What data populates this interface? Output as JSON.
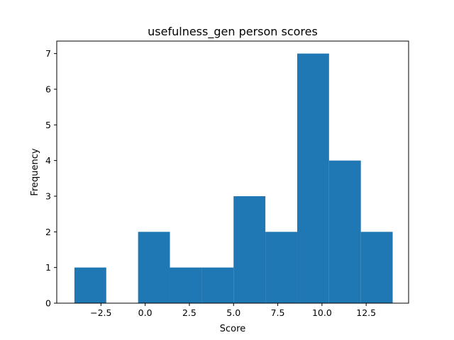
{
  "chart_data": {
    "type": "bar",
    "title": "usefulness_gen person scores",
    "xlabel": "Score",
    "ylabel": "Frequency",
    "bin_edges": [
      -4.0,
      -2.2,
      -0.4,
      1.4,
      3.2,
      5.0,
      6.8,
      8.6,
      10.4,
      12.2,
      14.0
    ],
    "values": [
      1,
      0,
      2,
      1,
      1,
      3,
      2,
      7,
      4,
      2
    ],
    "xlim": [
      -5.0,
      14.9
    ],
    "ylim": [
      0,
      7.35
    ],
    "xticks": [
      -2.5,
      0.0,
      2.5,
      5.0,
      7.5,
      10.0,
      12.5
    ],
    "xtick_labels": [
      "−2.5",
      "0.0",
      "2.5",
      "5.0",
      "7.5",
      "10.0",
      "12.5"
    ],
    "yticks": [
      0,
      1,
      2,
      3,
      4,
      5,
      6,
      7
    ],
    "ytick_labels": [
      "0",
      "1",
      "2",
      "3",
      "4",
      "5",
      "6",
      "7"
    ],
    "bar_color": "#1f77b4",
    "grid": false,
    "legend": "none"
  }
}
